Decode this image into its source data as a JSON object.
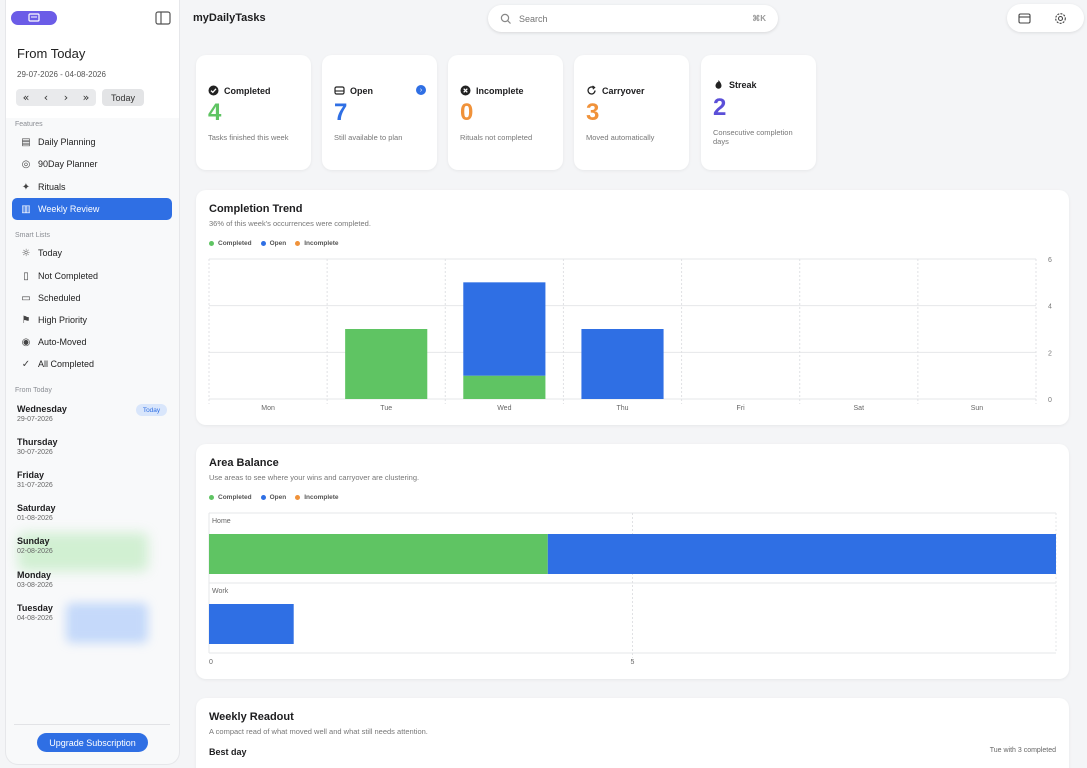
{
  "sidebar": {
    "range_title": "From Today",
    "range_dates": "29-07-2026 - 04-08-2026",
    "nav": {
      "first": "«",
      "prev": "‹",
      "next": "›",
      "last": "»",
      "today": "Today"
    },
    "features_label": "Features",
    "features": [
      {
        "label": "Daily Planning",
        "icon": "calendar-list-icon"
      },
      {
        "label": "90Day Planner",
        "icon": "target-icon"
      },
      {
        "label": "Rituals",
        "icon": "sparkle-icon"
      },
      {
        "label": "Weekly Review",
        "icon": "bar-chart-icon",
        "active": true
      }
    ],
    "smart_lists_label": "Smart Lists",
    "smart_lists": [
      {
        "label": "Today",
        "icon": "sun-icon"
      },
      {
        "label": "Not Completed",
        "icon": "clipboard-icon"
      },
      {
        "label": "Scheduled",
        "icon": "calendar-icon"
      },
      {
        "label": "High Priority",
        "icon": "priority-icon"
      },
      {
        "label": "Auto-Moved",
        "icon": "arrow-circle-icon"
      },
      {
        "label": "All Completed",
        "icon": "check-circle-icon"
      }
    ],
    "days_label": "From Today",
    "days": [
      {
        "name": "Wednesday",
        "date": "29-07-2026"
      },
      {
        "name": "Thursday",
        "date": "30-07-2026"
      },
      {
        "name": "Friday",
        "date": "31-07-2026"
      },
      {
        "name": "Saturday",
        "date": "01-08-2026"
      },
      {
        "name": "Sunday",
        "date": "02-08-2026"
      },
      {
        "name": "Monday",
        "date": "03-08-2026"
      },
      {
        "name": "Tuesday",
        "date": "04-08-2026"
      }
    ],
    "today_badge": "Today",
    "upgrade": "Upgrade Subscription"
  },
  "header": {
    "title": "myDailyTasks",
    "search_placeholder": "Search",
    "search_shortcut": "⌘K"
  },
  "stats": [
    {
      "label": "Completed",
      "value": "4",
      "sub": "Tasks finished this week",
      "color": "#5fc463",
      "icon": "check-circle-icon"
    },
    {
      "label": "Open",
      "value": "7",
      "sub": "Still available to plan",
      "color": "#2f6fe4",
      "icon": "tray-icon",
      "info": "›"
    },
    {
      "label": "Incomplete",
      "value": "0",
      "sub": "Rituals not completed",
      "color": "#f0923a",
      "icon": "x-circle-icon"
    },
    {
      "label": "Carryover",
      "value": "3",
      "sub": "Moved automatically",
      "color": "#f0923a",
      "icon": "refresh-icon"
    },
    {
      "label": "Streak",
      "value": "2",
      "sub": "Consecutive completion days",
      "color": "#5b4fd8",
      "icon": "flame-icon"
    }
  ],
  "colors": {
    "completed": "#5fc463",
    "open": "#2f6fe4",
    "incomplete": "#f0923a"
  },
  "trend": {
    "title": "Completion Trend",
    "subtitle": "36% of this week's occurrences were completed.",
    "legend": [
      "Completed",
      "Open",
      "Incomplete"
    ]
  },
  "balance": {
    "title": "Area Balance",
    "subtitle": "Use areas to see where your wins and carryover are clustering.",
    "legend": [
      "Completed",
      "Open",
      "Incomplete"
    ]
  },
  "readout": {
    "title": "Weekly Readout",
    "subtitle": "A compact read of what moved well and what still needs attention.",
    "best_day_label": "Best day",
    "best_day_value": "Tue with 3 completed"
  },
  "chart_data": [
    {
      "type": "bar",
      "stacked": true,
      "categories": [
        "Mon",
        "Tue",
        "Wed",
        "Thu",
        "Fri",
        "Sat",
        "Sun"
      ],
      "series": [
        {
          "name": "Completed",
          "values": [
            0,
            3,
            1,
            0,
            0,
            0,
            0
          ]
        },
        {
          "name": "Open",
          "values": [
            0,
            0,
            4,
            3,
            0,
            0,
            0
          ]
        },
        {
          "name": "Incomplete",
          "values": [
            0,
            0,
            0,
            0,
            0,
            0,
            0
          ]
        }
      ],
      "ylim": [
        0,
        6
      ],
      "yticks": [
        0,
        2,
        4,
        6
      ]
    },
    {
      "type": "bar",
      "orientation": "horizontal",
      "stacked": true,
      "categories": [
        "Home",
        "Work"
      ],
      "series": [
        {
          "name": "Completed",
          "values": [
            4,
            0
          ]
        },
        {
          "name": "Open",
          "values": [
            6,
            1
          ]
        },
        {
          "name": "Incomplete",
          "values": [
            0,
            0
          ]
        }
      ],
      "xlim": [
        0,
        10
      ],
      "xticks": [
        0,
        5
      ]
    }
  ]
}
